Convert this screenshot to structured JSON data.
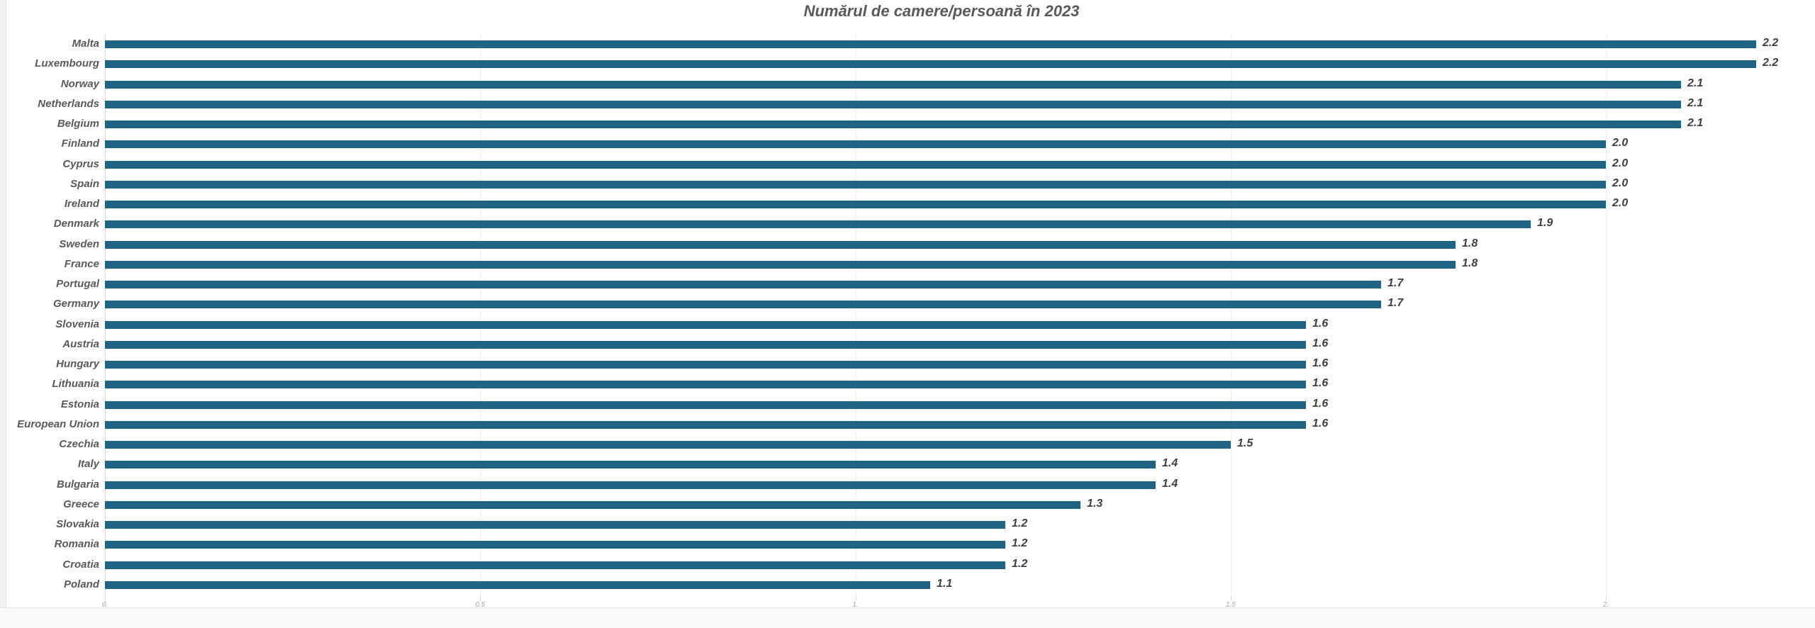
{
  "title": "Numărul de camere/persoană în 2023",
  "colors": {
    "bar": "#1f6583",
    "title_text": "#595959",
    "category_text": "#595959",
    "value_text": "#3f3f3f",
    "gridline": "#ececec",
    "axis_line": "#d9d9d9",
    "tick_text": "#a6a6a6",
    "chart_background": "#ffffff"
  },
  "chart_data": {
    "type": "bar",
    "orientation": "horizontal",
    "title": "Numărul de camere/persoană în 2023",
    "categories": [
      "Malta",
      "Luxembourg",
      "Norway",
      "Netherlands",
      "Belgium",
      "Finland",
      "Cyprus",
      "Spain",
      "Ireland",
      "Denmark",
      "Sweden",
      "France",
      "Portugal",
      "Germany",
      "Slovenia",
      "Austria",
      "Hungary",
      "Lithuania",
      "Estonia",
      "European Union",
      "Czechia",
      "Italy",
      "Bulgaria",
      "Greece",
      "Slovakia",
      "Romania",
      "Croatia",
      "Poland"
    ],
    "values": [
      2.2,
      2.2,
      2.1,
      2.1,
      2.1,
      2.0,
      2.0,
      2.0,
      2.0,
      1.9,
      1.8,
      1.8,
      1.7,
      1.7,
      1.6,
      1.6,
      1.6,
      1.6,
      1.6,
      1.6,
      1.5,
      1.4,
      1.4,
      1.3,
      1.2,
      1.2,
      1.2,
      1.1
    ],
    "value_labels": [
      "2.2",
      "2.2",
      "2.1",
      "2.1",
      "2.1",
      "2.0",
      "2.0",
      "2.0",
      "2.0",
      "1.9",
      "1.8",
      "1.8",
      "1.7",
      "1.7",
      "1.6",
      "1.6",
      "1.6",
      "1.6",
      "1.6",
      "1.6",
      "1.5",
      "1.4",
      "1.4",
      "1.3",
      "1.2",
      "1.2",
      "1.2",
      "1.1"
    ],
    "xlim": [
      0,
      2.2
    ],
    "x_ticks": [
      {
        "value": 0,
        "label": "0."
      },
      {
        "value": 0.5,
        "label": "0.5"
      },
      {
        "value": 1,
        "label": "1."
      },
      {
        "value": 1.5,
        "label": "1.5"
      },
      {
        "value": 2,
        "label": "2."
      }
    ],
    "grid": "vertical-only",
    "legend": "none",
    "data_labels": "outside-end"
  }
}
